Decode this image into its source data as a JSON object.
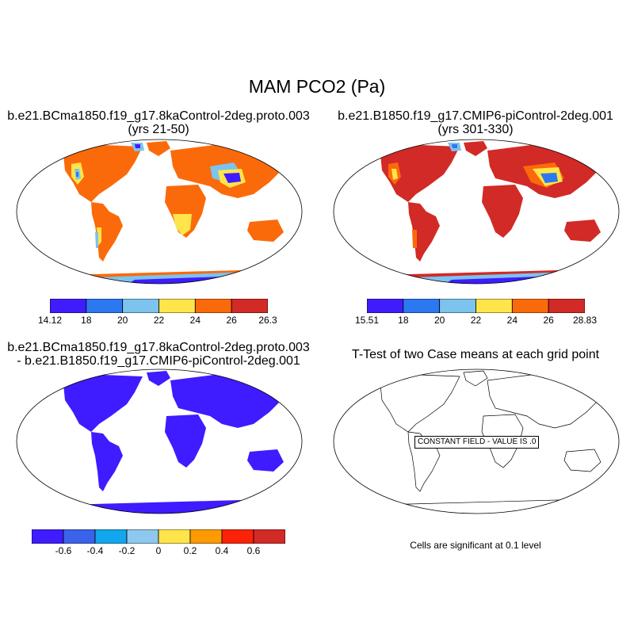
{
  "figure": {
    "title": "MAM PCO2 (Pa)"
  },
  "panels": [
    {
      "id": "case1",
      "title_line1": "b.e21.BCma1850.f19_g17.8kaControl-2deg.proto.003",
      "title_line2": "(yrs 21-50)",
      "colorbar": {
        "colors": [
          "#3e1cff",
          "#2c78f0",
          "#7cc3ee",
          "#ffe54a",
          "#fb6a0a",
          "#d22a26"
        ],
        "labels": [
          "14.12",
          "18",
          "20",
          "22",
          "24",
          "26",
          "26.3"
        ]
      }
    },
    {
      "id": "case2",
      "title_line1": "b.e21.B1850.f19_g17.CMIP6-piControl-2deg.001",
      "title_line2": "(yrs 301-330)",
      "colorbar": {
        "colors": [
          "#3e1cff",
          "#2c78f0",
          "#7cc3ee",
          "#ffe54a",
          "#fb6a0a",
          "#d22a26"
        ],
        "labels": [
          "15.51",
          "18",
          "20",
          "22",
          "24",
          "26",
          "28.83"
        ]
      }
    },
    {
      "id": "diff",
      "title_line1": "b.e21.BCma1850.f19_g17.8kaControl-2deg.proto.003",
      "title_line2": "- b.e21.B1850.f19_g17.CMIP6-piControl-2deg.001",
      "colorbar": {
        "colors": [
          "#3e1cff",
          "#3b62ea",
          "#12a6ee",
          "#8ec8ee",
          "#ffe54a",
          "#fe9a02",
          "#fb2208",
          "#d22a26"
        ],
        "labels": [
          "-0.6",
          "-0.4",
          "-0.2",
          "0",
          "0.2",
          "0.4",
          "0.6"
        ]
      }
    },
    {
      "id": "ttest",
      "title_line1": "T-Test of two Case means at each grid point",
      "constant_field_label": "CONSTANT FIELD - VALUE IS .0",
      "note": "Cells are significant at 0.1 level"
    }
  ]
}
